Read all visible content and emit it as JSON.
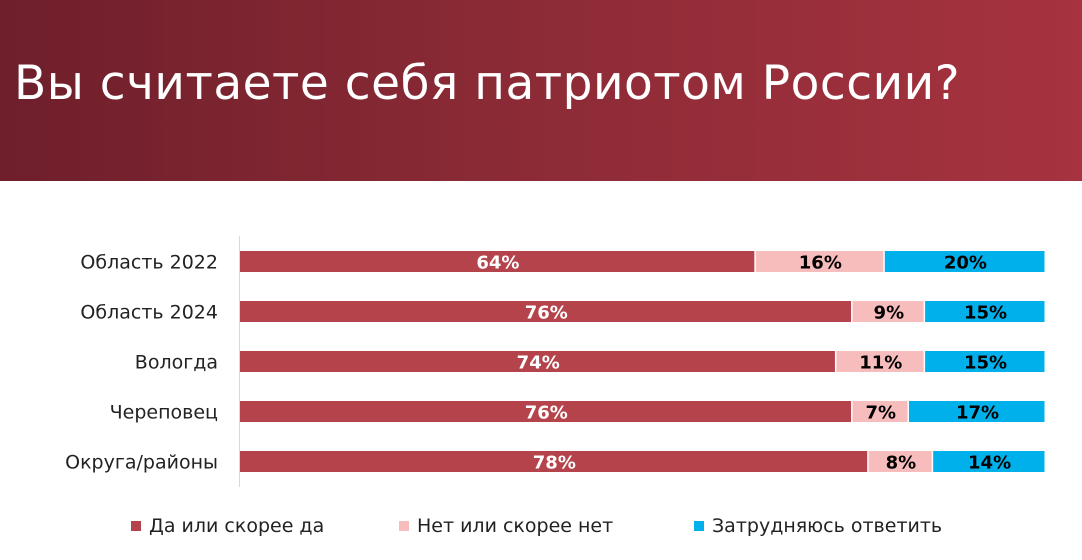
{
  "title": "Вы считаете себя патриотом России?",
  "colors": {
    "header_from": "#6e1f2b",
    "header_to": "#a6333f",
    "yes": "#b5434b",
    "no": "#f7bcbc",
    "undecided": "#00b0ea"
  },
  "chart_data": {
    "type": "bar",
    "orientation": "horizontal",
    "stacked": true,
    "percent_stacked": true,
    "categories": [
      "Область 2022",
      "Область 2024",
      "Вологда",
      "Череповец",
      "Округа/районы"
    ],
    "series": [
      {
        "name": "Да или скорее да",
        "values": [
          64,
          76,
          74,
          76,
          78
        ],
        "color": "#b5434b",
        "label_color": "#ffffff"
      },
      {
        "name": "Нет или скорее нет",
        "values": [
          16,
          9,
          11,
          7,
          8
        ],
        "color": "#f7bcbc",
        "label_color": "#000000"
      },
      {
        "name": "Затрудняюсь ответить",
        "values": [
          20,
          15,
          15,
          17,
          14
        ],
        "color": "#00b0ea",
        "label_color": "#000000"
      }
    ],
    "data_labels": [
      [
        "64%",
        "76%",
        "74%",
        "76%",
        "78%"
      ],
      [
        "16%",
        "9%",
        "11%",
        "7%",
        "8%"
      ],
      [
        "20%",
        "15%",
        "15%",
        "17%",
        "14%"
      ]
    ],
    "xlim": [
      0,
      100
    ],
    "grid": false,
    "legend_position": "bottom"
  }
}
